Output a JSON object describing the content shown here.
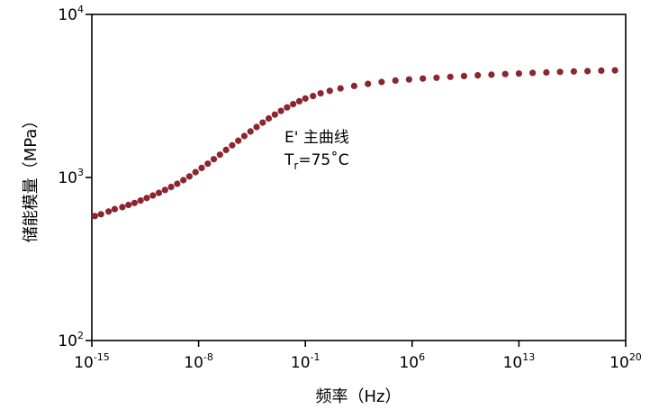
{
  "chart_data": {
    "type": "scatter",
    "xlabel": "频率（Hz）",
    "ylabel": "储能模量（MPa）",
    "x_scale": "log",
    "y_scale": "log",
    "xlim": [
      1e-15,
      1e+20
    ],
    "ylim": [
      100,
      10000
    ],
    "x_ticks": [
      {
        "base": "10",
        "exp": "-15"
      },
      {
        "base": "10",
        "exp": "-8"
      },
      {
        "base": "10",
        "exp": "-1"
      },
      {
        "base": "10",
        "exp": "6"
      },
      {
        "base": "10",
        "exp": "13"
      },
      {
        "base": "10",
        "exp": "20"
      }
    ],
    "y_ticks": [
      {
        "base": "10",
        "exp": "2"
      },
      {
        "base": "10",
        "exp": "3"
      },
      {
        "base": "10",
        "exp": "4"
      }
    ],
    "annotation": {
      "line1": "E' 主曲线",
      "t_main": "T",
      "t_sub": "r",
      "t_rest": "=75˚C"
    },
    "marker_color": "#8b2530",
    "grid": false,
    "legend": "none",
    "series": [
      {
        "points": [
          [
            -14.8,
            580
          ],
          [
            -14.4,
            595
          ],
          [
            -13.9,
            618
          ],
          [
            -13.5,
            640
          ],
          [
            -13.0,
            658
          ],
          [
            -12.6,
            678
          ],
          [
            -12.2,
            698
          ],
          [
            -11.8,
            722
          ],
          [
            -11.4,
            748
          ],
          [
            -11.0,
            775
          ],
          [
            -10.6,
            805
          ],
          [
            -10.2,
            838
          ],
          [
            -9.8,
            875
          ],
          [
            -9.4,
            915
          ],
          [
            -9.0,
            962
          ],
          [
            -8.6,
            1015
          ],
          [
            -8.2,
            1078
          ],
          [
            -7.8,
            1145
          ],
          [
            -7.4,
            1215
          ],
          [
            -7.0,
            1295
          ],
          [
            -6.6,
            1380
          ],
          [
            -6.2,
            1475
          ],
          [
            -5.8,
            1575
          ],
          [
            -5.4,
            1680
          ],
          [
            -5.0,
            1795
          ],
          [
            -4.6,
            1915
          ],
          [
            -4.2,
            2040
          ],
          [
            -3.8,
            2170
          ],
          [
            -3.4,
            2300
          ],
          [
            -3.0,
            2430
          ],
          [
            -2.6,
            2560
          ],
          [
            -2.2,
            2690
          ],
          [
            -1.8,
            2815
          ],
          [
            -1.4,
            2935
          ],
          [
            -1.0,
            3050
          ],
          [
            -0.5,
            3160
          ],
          [
            0.0,
            3280
          ],
          [
            0.6,
            3400
          ],
          [
            1.3,
            3520
          ],
          [
            2.2,
            3640
          ],
          [
            3.1,
            3750
          ],
          [
            4.0,
            3850
          ],
          [
            4.9,
            3930
          ],
          [
            5.8,
            3990
          ],
          [
            6.7,
            4040
          ],
          [
            7.6,
            4090
          ],
          [
            8.5,
            4140
          ],
          [
            9.4,
            4190
          ],
          [
            10.3,
            4230
          ],
          [
            11.2,
            4270
          ],
          [
            12.1,
            4310
          ],
          [
            13.0,
            4340
          ],
          [
            13.9,
            4380
          ],
          [
            14.8,
            4410
          ],
          [
            15.7,
            4440
          ],
          [
            16.6,
            4470
          ],
          [
            17.5,
            4490
          ],
          [
            18.4,
            4520
          ],
          [
            19.3,
            4540
          ]
        ]
      }
    ]
  }
}
